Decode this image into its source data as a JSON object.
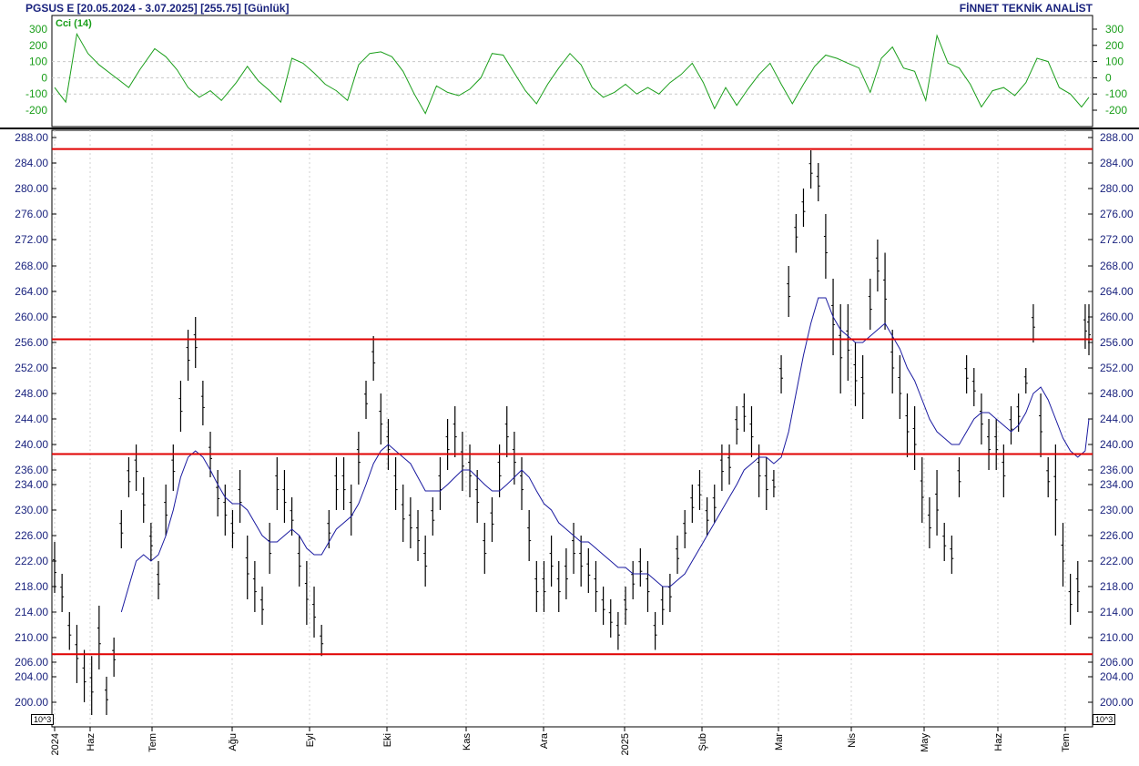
{
  "header": {
    "left_title": "PGSUS E  [20.05.2024 - 3.07.2025]  [255.75]  [Günlük]",
    "right_title": "FİNNET TEKNİK ANALİST"
  },
  "indicator": {
    "label": "Cci (14)",
    "color": "#1a9e1a",
    "ticks": [
      300,
      200,
      100,
      0,
      -100,
      -200
    ],
    "tick_labels": [
      "300",
      "200",
      "100",
      "0",
      "-100",
      "-200"
    ]
  },
  "price_axis": {
    "tick_labels": [
      "288.00",
      "284.00",
      "280.00",
      "276.00",
      "272.00",
      "268.00",
      "264.00",
      "260.00",
      "256.00",
      "252.00",
      "248.00",
      "244.00",
      "240.00",
      "236.00",
      "234.00",
      "230.00",
      "226.00",
      "222.00",
      "218.00",
      "214.00",
      "210.00",
      "206.00",
      "204.00",
      "200.00"
    ],
    "exponent_label": "10^3"
  },
  "time_axis": {
    "labels": [
      "2024",
      "Haz",
      "Tem",
      "Ağu",
      "Eyl",
      "Eki",
      "Kas",
      "Ara",
      "2025",
      "Şub",
      "Mar",
      "Nis",
      "May",
      "Haz",
      "Tem"
    ]
  },
  "colors": {
    "bars": "#000000",
    "moving_average": "#1a1aa0",
    "horizontal_levels": "#e00000",
    "cci_line": "#1a9e1a",
    "axis_text": "#1a237e"
  },
  "chart_data": [
    {
      "type": "line",
      "title": "Cci (14)",
      "ylim": [
        -300,
        300
      ],
      "x": [
        0,
        3,
        6,
        9,
        12,
        16,
        20,
        23,
        27,
        30,
        33,
        36,
        39,
        42,
        45,
        49,
        52,
        55,
        58,
        61,
        64,
        67,
        70,
        73,
        76,
        79,
        82,
        85,
        88,
        91,
        94,
        97,
        100,
        103,
        106,
        109,
        112,
        115,
        118,
        121,
        124,
        127,
        130,
        133,
        136,
        139,
        142,
        145,
        148,
        151,
        154,
        157,
        160,
        163,
        166,
        169,
        172,
        175,
        178,
        181,
        184,
        187,
        190,
        193,
        196,
        199,
        202,
        205,
        208,
        211,
        214,
        217,
        220,
        223,
        226,
        229,
        232,
        235,
        238,
        241,
        244,
        247,
        250,
        253,
        256,
        259,
        262,
        265,
        268,
        271,
        274,
        277,
        279
      ],
      "series": [
        {
          "values": [
            -60,
            -150,
            270,
            150,
            80,
            10,
            -60,
            50,
            180,
            130,
            50,
            -60,
            -120,
            -80,
            -140,
            -30,
            70,
            -20,
            -80,
            -150,
            120,
            90,
            30,
            -40,
            -80,
            -140,
            80,
            150,
            160,
            130,
            40,
            -100,
            -220,
            -50,
            -90,
            -110,
            -70,
            0,
            150,
            140,
            30,
            -80,
            -160,
            -40,
            60,
            150,
            80,
            -60,
            -120,
            -90,
            -40,
            -100,
            -60,
            -100,
            -30,
            20,
            90,
            -30,
            -190,
            -60,
            -170,
            -70,
            20,
            90,
            -40,
            -160,
            -40,
            70,
            140,
            120,
            90,
            60,
            -90,
            120,
            190,
            60,
            40,
            -140,
            260,
            90,
            60,
            -40,
            -180,
            -80,
            -60,
            -110,
            -30,
            120,
            100,
            -60,
            -100,
            -180,
            -120
          ],
          "note_removed": ""
        }
      ]
    },
    {
      "type": "ohlc",
      "ylim": [
        198,
        290
      ],
      "x": [
        0,
        2,
        4,
        6,
        8,
        10,
        12,
        14,
        16,
        18,
        20,
        22,
        24,
        26,
        28,
        30,
        32,
        34,
        36,
        38,
        40,
        42,
        44,
        46,
        48,
        50,
        52,
        54,
        56,
        58,
        60,
        62,
        64,
        66,
        68,
        70,
        72,
        74,
        76,
        78,
        80,
        82,
        84,
        86,
        88,
        90,
        92,
        94,
        96,
        98,
        100,
        102,
        104,
        106,
        108,
        110,
        112,
        114,
        116,
        118,
        120,
        122,
        124,
        126,
        128,
        130,
        132,
        134,
        136,
        138,
        140,
        142,
        144,
        146,
        148,
        150,
        152,
        154,
        156,
        158,
        160,
        162,
        164,
        166,
        168,
        170,
        172,
        174,
        176,
        178,
        180,
        182,
        184,
        186,
        188,
        190,
        192,
        194,
        196,
        198,
        200,
        202,
        204,
        206,
        208,
        210,
        212,
        214,
        216,
        218,
        220,
        222,
        224,
        226,
        228,
        230,
        232,
        234,
        236,
        238,
        240,
        242,
        244,
        246,
        248,
        250,
        252,
        254,
        256,
        258,
        260,
        262,
        264,
        266,
        268,
        270,
        272,
        274,
        276,
        278,
        279
      ],
      "series": [
        {
          "name": "",
          "high": [
            225,
            220,
            214,
            212,
            208,
            207,
            215,
            204,
            210,
            230,
            238,
            240,
            235,
            228,
            222,
            234,
            240,
            250,
            258,
            260,
            250,
            242,
            236,
            234,
            230,
            236,
            226,
            222,
            218,
            228,
            238,
            236,
            232,
            226,
            222,
            218,
            212,
            230,
            238,
            238,
            234,
            242,
            250,
            257,
            248,
            244,
            238,
            234,
            232,
            230,
            226,
            232,
            238,
            244,
            246,
            242,
            240,
            236,
            228,
            232,
            240,
            246,
            242,
            238,
            230,
            222,
            222,
            226,
            222,
            224,
            228,
            226,
            224,
            222,
            218,
            216,
            214,
            218,
            222,
            224,
            222,
            214,
            218,
            220,
            226,
            230,
            234,
            236,
            232,
            234,
            240,
            240,
            246,
            248,
            246,
            240,
            238,
            236,
            254,
            268,
            276,
            280,
            286,
            284,
            276,
            266,
            262,
            262,
            256,
            254,
            266,
            272,
            270,
            258,
            254,
            248,
            246,
            238,
            232,
            236,
            228,
            226,
            238,
            254,
            252,
            248,
            244,
            244,
            240,
            246,
            248,
            252,
            262,
            248,
            238,
            240,
            228,
            220,
            222,
            262,
            262
          ],
          "low": [
            217,
            214,
            208,
            203,
            200,
            198,
            205,
            198,
            204,
            224,
            232,
            233,
            228,
            222,
            216,
            226,
            233,
            242,
            250,
            252,
            243,
            235,
            229,
            226,
            224,
            228,
            216,
            214,
            212,
            220,
            230,
            228,
            226,
            218,
            212,
            210,
            207,
            224,
            230,
            230,
            226,
            234,
            244,
            250,
            240,
            236,
            230,
            225,
            224,
            222,
            218,
            226,
            230,
            236,
            238,
            233,
            232,
            228,
            220,
            225,
            232,
            238,
            234,
            230,
            222,
            214,
            214,
            218,
            214,
            216,
            220,
            218,
            217,
            214,
            212,
            210,
            208,
            212,
            216,
            218,
            214,
            208,
            212,
            214,
            220,
            224,
            228,
            230,
            226,
            228,
            233,
            234,
            240,
            242,
            238,
            232,
            230,
            232,
            248,
            260,
            270,
            274,
            280,
            278,
            266,
            254,
            248,
            250,
            246,
            244,
            258,
            264,
            258,
            248,
            244,
            238,
            236,
            228,
            224,
            226,
            222,
            220,
            232,
            248,
            246,
            240,
            236,
            236,
            232,
            240,
            242,
            248,
            256,
            238,
            232,
            226,
            218,
            212,
            214,
            255,
            254
          ]
        },
        {
          "name": "",
          "values": [
            null,
            null,
            null,
            null,
            null,
            null,
            null,
            null,
            null,
            214,
            218,
            222,
            223,
            222,
            223,
            226,
            230,
            235,
            238,
            239,
            238,
            236,
            234,
            232,
            231,
            231,
            230,
            228,
            226,
            225,
            225,
            226,
            227,
            226,
            224,
            223,
            223,
            225,
            227,
            228,
            229,
            231,
            234,
            237,
            239,
            240,
            239,
            238,
            237,
            235,
            233,
            233,
            233,
            234,
            235,
            236,
            236,
            235,
            234,
            233,
            233,
            234,
            235,
            236,
            235,
            233,
            231,
            230,
            228,
            227,
            226,
            225,
            225,
            224,
            223,
            222,
            221,
            221,
            220,
            220,
            220,
            219,
            218,
            218,
            219,
            220,
            222,
            224,
            226,
            228,
            230,
            232,
            234,
            236,
            237,
            238,
            238,
            237,
            238,
            242,
            248,
            254,
            259,
            263,
            263,
            260,
            258,
            257,
            256,
            256,
            257,
            258,
            259,
            257,
            255,
            252,
            250,
            247,
            244,
            242,
            241,
            240,
            240,
            242,
            244,
            245,
            245,
            244,
            243,
            242,
            243,
            245,
            248,
            249,
            247,
            244,
            241,
            239,
            238,
            239,
            244
          ]
        }
      ],
      "horizontal_levels": [
        286.2,
        256.5,
        238.5,
        207.3
      ]
    }
  ]
}
